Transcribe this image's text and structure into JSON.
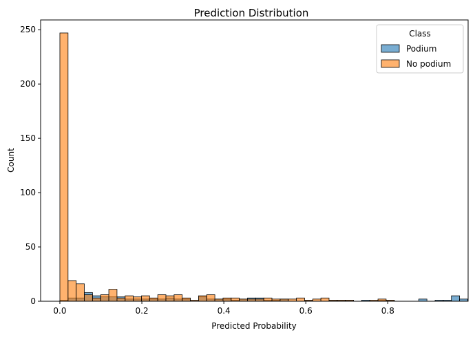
{
  "chart_data": {
    "type": "bar",
    "title": "Prediction Distribution",
    "xlabel": "Predicted Probability",
    "ylabel": "Count",
    "xlim": [
      -0.047,
      0.996
    ],
    "ylim": [
      0,
      259
    ],
    "x_ticks": [
      "0.0",
      "0.2",
      "0.4",
      "0.6",
      "0.8"
    ],
    "y_ticks": [
      "0",
      "50",
      "100",
      "150",
      "200",
      "250"
    ],
    "legend": {
      "title": "Class",
      "position": "top-right",
      "entries": [
        "Podium",
        "No podium"
      ]
    },
    "bin_start": 0.0,
    "bin_width": 0.0199,
    "series": [
      {
        "name": "Podium",
        "color": "#1f77b4",
        "values": [
          1,
          3,
          3,
          8,
          5,
          4,
          4,
          4,
          2,
          2,
          2,
          2,
          2,
          3,
          2,
          2,
          0,
          4,
          2,
          2,
          2,
          1,
          2,
          3,
          3,
          1,
          1,
          2,
          0,
          0,
          1,
          0,
          0,
          1,
          1,
          1,
          0,
          1,
          0,
          1,
          1,
          0,
          0,
          0,
          2,
          0,
          1,
          1,
          5,
          2
        ]
      },
      {
        "name": "No podium",
        "color": "#ff7f0e",
        "values": [
          247,
          19,
          16,
          6,
          3,
          6,
          11,
          3,
          5,
          4,
          5,
          3,
          6,
          5,
          6,
          3,
          1,
          5,
          6,
          2,
          3,
          3,
          2,
          2,
          2,
          3,
          2,
          2,
          2,
          3,
          1,
          2,
          3,
          1,
          1,
          1,
          0,
          0,
          1,
          2,
          1,
          0,
          0,
          0,
          0,
          0,
          0,
          0,
          0,
          0
        ]
      }
    ]
  }
}
